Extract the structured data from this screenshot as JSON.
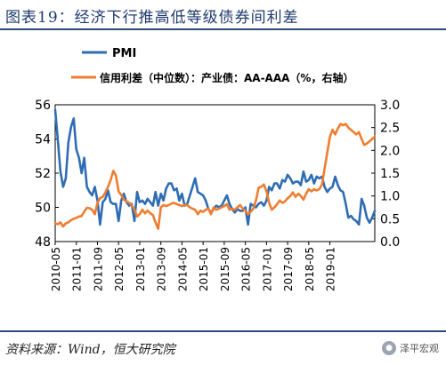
{
  "title": "图表19：经济下行推高低等级债券间利差",
  "source": "资料来源：Wind，恒大研究院",
  "watermark": "泽平宏观",
  "chart_data": {
    "type": "line",
    "x_ticks": [
      "2010-05",
      "2011-01",
      "2011-09",
      "2012-05",
      "2013-01",
      "2013-09",
      "2014-05",
      "2015-01",
      "2015-09",
      "2016-05",
      "2017-01",
      "2017-09",
      "2018-05",
      "2019-01"
    ],
    "left_axis": {
      "ylim": [
        48,
        56
      ],
      "ticks": [
        48,
        50,
        52,
        54,
        56
      ]
    },
    "right_axis": {
      "ylim": [
        0.0,
        3.0
      ],
      "ticks": [
        "0.0",
        "0.5",
        "1.0",
        "1.5",
        "2.0",
        "2.5",
        "3.0"
      ]
    },
    "legend": [
      "PMI",
      "信用利差（中位数）：产业债：AA-AAA（%，右轴）"
    ],
    "series": [
      {
        "name": "PMI",
        "axis": "left",
        "color": "#2e6db4",
        "values": [
          55.7,
          53.9,
          52.1,
          51.2,
          51.7,
          53.8,
          54.7,
          55.2,
          53.4,
          52.9,
          52.0,
          52.9,
          51.2,
          50.9,
          50.7,
          51.2,
          50.4,
          49.0,
          50.3,
          50.5,
          51.0,
          50.3,
          50.2,
          50.2,
          49.2,
          50.4,
          50.8,
          50.3,
          50.1,
          50.2,
          49.2,
          50.9,
          50.3,
          50.4,
          50.2,
          50.5,
          50.3,
          50.1,
          50.9,
          50.1,
          50.8,
          50.4,
          51.1,
          51.4,
          51.4,
          51.0,
          51.1,
          50.4,
          50.8,
          50.1,
          50.2,
          50.7,
          51.2,
          51.7,
          50.9,
          50.8,
          50.7,
          50.4,
          49.9,
          49.7,
          49.9,
          50.1,
          50.0,
          50.1,
          50.4,
          50.7,
          50.2,
          49.9,
          49.7,
          49.9,
          49.8,
          49.8,
          50.0,
          49.0,
          50.2,
          50.1,
          50.0,
          50.2,
          50.3,
          50.1,
          50.4,
          51.2,
          51.0,
          51.4,
          51.4,
          51.1,
          51.6,
          51.5,
          51.9,
          51.7,
          51.4,
          51.5,
          51.5,
          51.3,
          52.1,
          51.5,
          51.6,
          51.9,
          51.4,
          51.8,
          51.7,
          51.8,
          51.2,
          50.9,
          51.1,
          51.2,
          51.8,
          51.3,
          51.0,
          50.9,
          50.2,
          49.4,
          49.5,
          49.3,
          49.2,
          49.0,
          50.5,
          50.1,
          49.4,
          49.1,
          49.4,
          49.8
        ]
      },
      {
        "name": "信用利差（中位数）：产业债：AA-AAA（%，右轴）",
        "axis": "right",
        "color": "#ef7d31",
        "values": [
          0.4,
          0.38,
          0.42,
          0.33,
          0.4,
          0.42,
          0.47,
          0.5,
          0.52,
          0.55,
          0.56,
          0.66,
          0.74,
          0.73,
          0.7,
          0.6,
          0.85,
          0.95,
          0.98,
          1.08,
          1.2,
          1.35,
          1.55,
          1.45,
          1.1,
          1.02,
          0.92,
          0.88,
          0.85,
          0.8,
          0.7,
          0.55,
          0.6,
          0.7,
          0.62,
          0.68,
          0.62,
          0.58,
          0.42,
          0.28,
          0.75,
          0.8,
          0.78,
          0.8,
          0.83,
          0.85,
          0.82,
          0.8,
          0.78,
          0.8,
          0.8,
          0.75,
          0.72,
          0.7,
          0.6,
          0.68,
          0.65,
          0.7,
          0.72,
          0.6,
          0.75,
          0.7,
          0.72,
          0.75,
          0.78,
          0.82,
          0.7,
          0.72,
          0.7,
          0.75,
          0.8,
          0.72,
          0.68,
          0.6,
          0.65,
          0.72,
          0.9,
          1.18,
          1.2,
          1.25,
          1.1,
          0.85,
          0.7,
          0.75,
          0.82,
          0.9,
          0.85,
          0.88,
          0.95,
          1.0,
          1.08,
          0.98,
          1.05,
          1.0,
          0.92,
          1.05,
          1.15,
          1.1,
          1.15,
          1.12,
          1.15,
          1.25,
          1.6,
          1.95,
          2.3,
          2.45,
          2.35,
          2.48,
          2.58,
          2.55,
          2.58,
          2.5,
          2.45,
          2.4,
          2.35,
          2.4,
          2.25,
          2.12,
          2.15,
          2.2,
          2.25,
          2.3
        ]
      }
    ]
  }
}
